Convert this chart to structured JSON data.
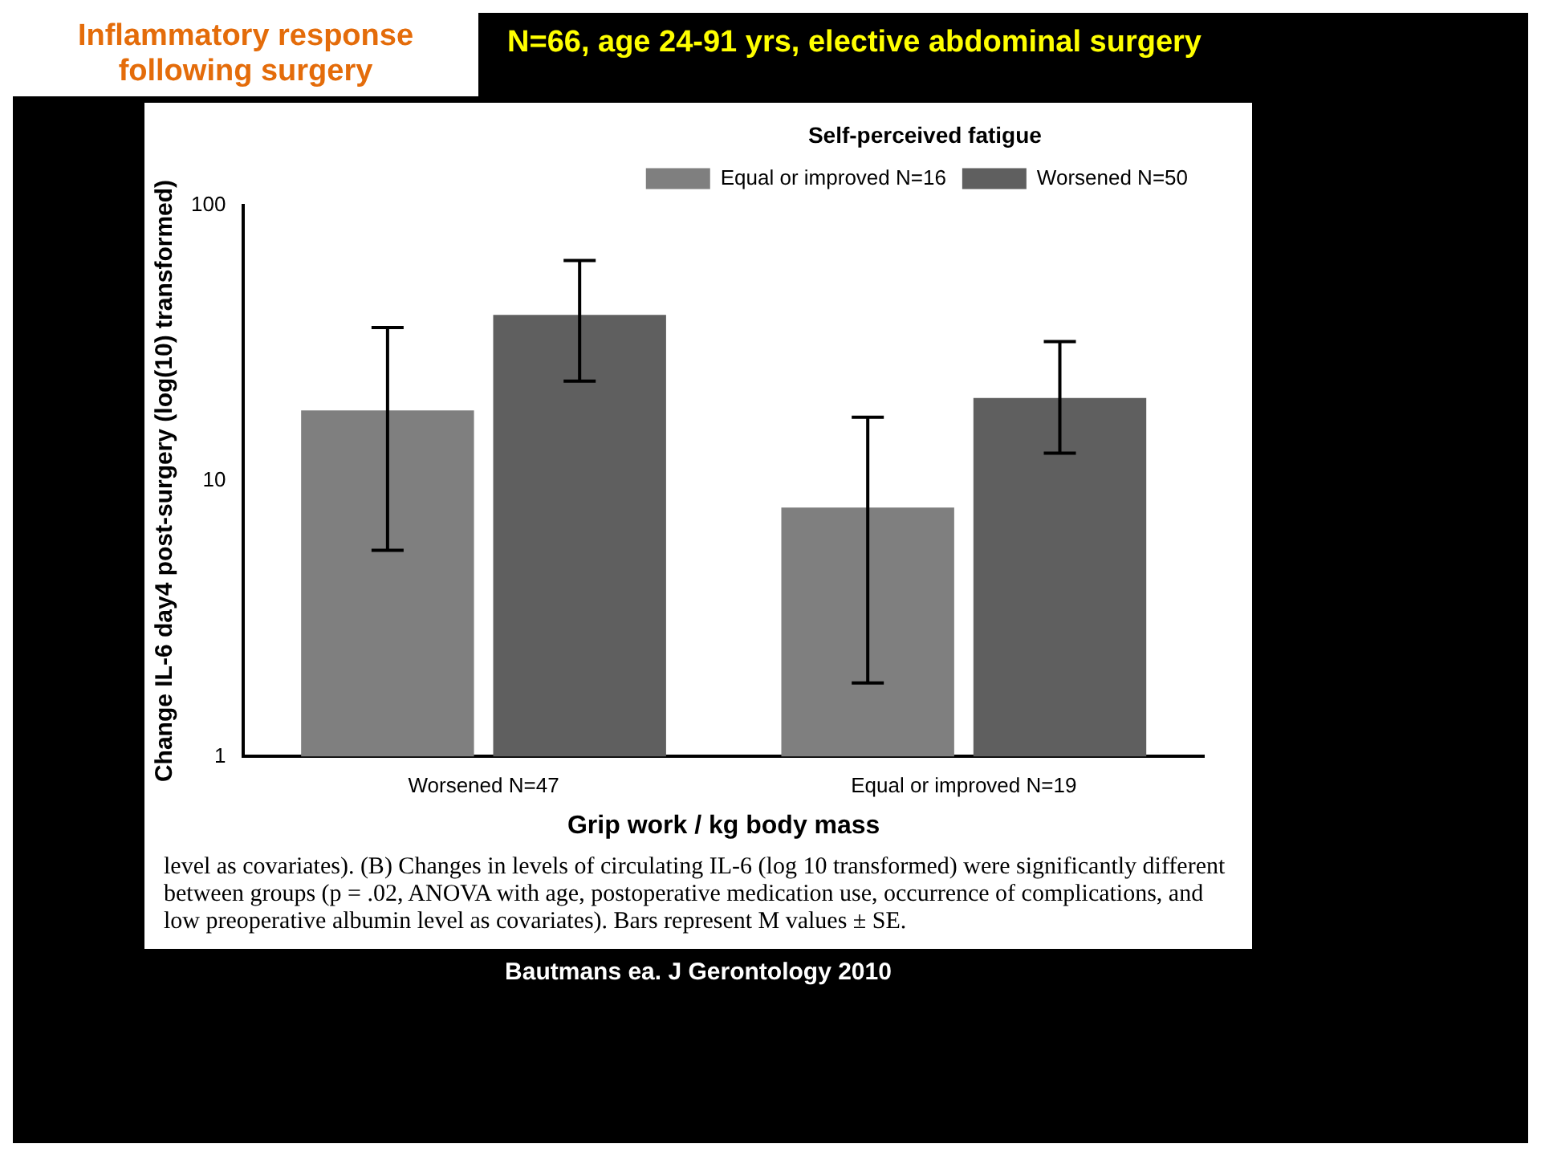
{
  "chart_data": {
    "type": "bar",
    "title": "Inflammatory response following surgery",
    "subtitle": "N=66, age 24-91 yrs, elective abdominal surgery",
    "xlabel": "Grip work / kg body mass",
    "ylabel": "Change IL-6 day4 post-surgery (log(10) transformed)",
    "legend_title": "Self-perceived fatigue",
    "categories": [
      "Worsened N=47",
      "Equal or improved N=19"
    ],
    "series": [
      {
        "name": "Equal or improved N=16",
        "color": "#7f7f7f",
        "values": [
          18,
          8
        ],
        "errors": [
          [
            5.6,
            36
          ],
          [
            1.85,
            17
          ]
        ]
      },
      {
        "name": "Worsened N=50",
        "color": "#5f5f5f",
        "values": [
          40,
          20
        ],
        "errors": [
          [
            23,
            63
          ],
          [
            12.6,
            32
          ]
        ]
      }
    ],
    "log": "y",
    "ylim": [
      1,
      100
    ],
    "yticks": [
      1,
      10,
      100
    ],
    "grid": false,
    "legend": "top right",
    "annotations": [
      "level as covariates). (B) Changes in levels of circulating IL-6 (log 10 transformed) were significantly different between groups (p = .02, ANOVA with age, postoperative medication use, occurrence of complications, and low preoperative albumin level as covariates). Bars represent M values ± SE.",
      "Bautmans ea. J Gerontology 2010"
    ]
  }
}
